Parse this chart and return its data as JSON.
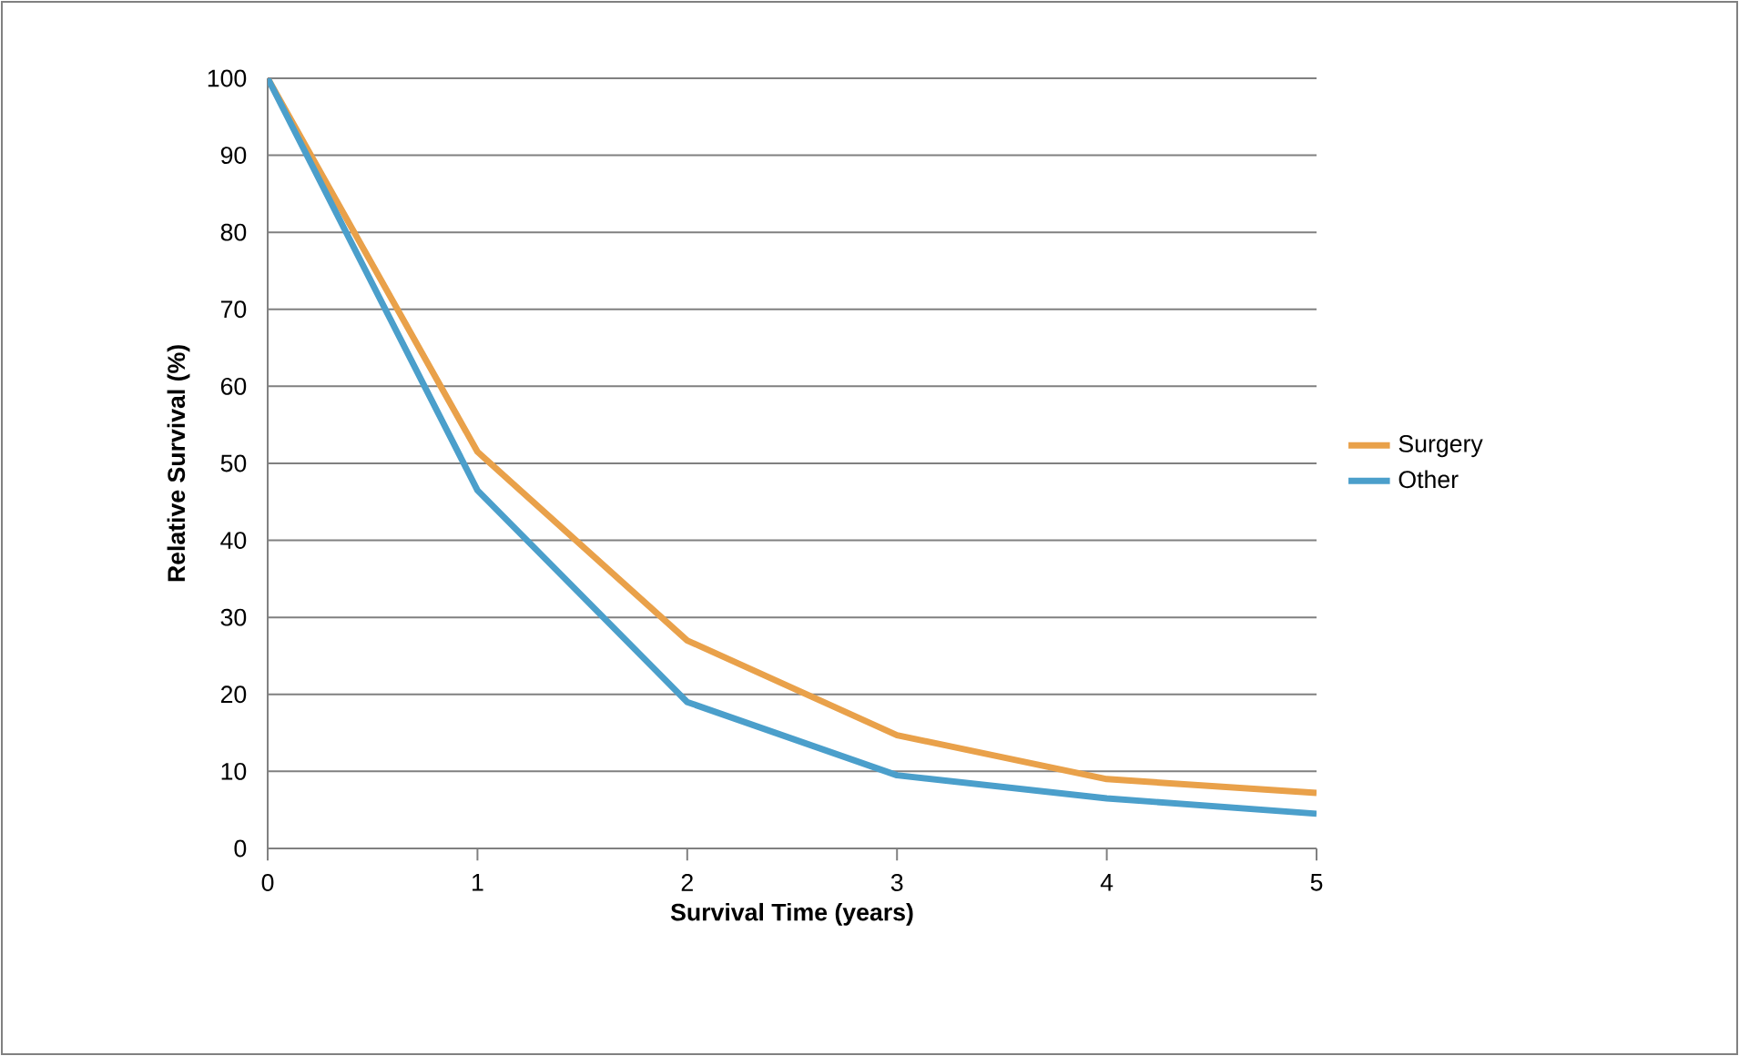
{
  "chart_data": {
    "type": "line",
    "xlabel": "Survival Time (years)",
    "ylabel": "Relative Survival (%)",
    "x": [
      0,
      1,
      2,
      3,
      4,
      5
    ],
    "series": [
      {
        "name": "Surgery",
        "color": "#e9a14a",
        "values": [
          100,
          51.5,
          27,
          14.7,
          9,
          7.2
        ]
      },
      {
        "name": "Other",
        "color": "#4b9fcb",
        "values": [
          100,
          46.5,
          19,
          9.5,
          6.5,
          4.5
        ]
      }
    ],
    "xlim": [
      0,
      5
    ],
    "xticks": [
      0,
      1,
      2,
      3,
      4,
      5
    ],
    "ylim": [
      0,
      100
    ],
    "yticks": [
      0,
      10,
      20,
      30,
      40,
      50,
      60,
      70,
      80,
      90,
      100
    ],
    "grid": "y",
    "legend": "right",
    "marker": "none",
    "line_style": "solid"
  }
}
